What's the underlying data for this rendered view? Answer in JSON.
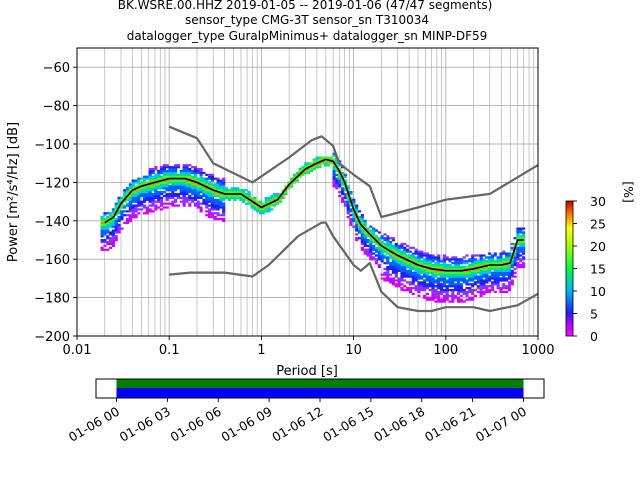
{
  "title_lines": [
    "BK.WSRE.00.HHZ   2019-01-05 -- 2019-01-06  (47/47 segments)",
    "sensor_type CMG-3T sensor_sn T310034",
    "datalogger_type GuralpMinimus+ datalogger_sn MINP-DF59"
  ],
  "axes": {
    "xlabel": "Period [s]",
    "ylabel": "Power [m²/s⁴/Hz] [dB]",
    "xlim": [
      0.01,
      1000
    ],
    "ylim": [
      -200,
      -50
    ],
    "x_scale": "log",
    "grid": true,
    "x_ticks": [
      {
        "value": 0.01,
        "label": "0.01"
      },
      {
        "value": 0.1,
        "label": "0.1"
      },
      {
        "value": 1,
        "label": "1"
      },
      {
        "value": 10,
        "label": "10"
      },
      {
        "value": 100,
        "label": "100"
      },
      {
        "value": 1000,
        "label": "1000"
      }
    ],
    "y_ticks": [
      {
        "value": -60,
        "label": "−60"
      },
      {
        "value": -80,
        "label": "−80"
      },
      {
        "value": -100,
        "label": "−100"
      },
      {
        "value": -120,
        "label": "−120"
      },
      {
        "value": -140,
        "label": "−140"
      },
      {
        "value": -160,
        "label": "−160"
      },
      {
        "value": -180,
        "label": "−180"
      },
      {
        "value": -200,
        "label": "−200"
      }
    ]
  },
  "colorbar": {
    "label": "[%]",
    "range": [
      0,
      30
    ],
    "ticks": [
      {
        "value": 0,
        "label": "0"
      },
      {
        "value": 5,
        "label": "5"
      },
      {
        "value": 10,
        "label": "10"
      },
      {
        "value": 15,
        "label": "15"
      },
      {
        "value": 20,
        "label": "20"
      },
      {
        "value": 25,
        "label": "25"
      },
      {
        "value": 30,
        "label": "30"
      }
    ]
  },
  "timeline": {
    "tick_labels": [
      "01-06 00",
      "01-06 03",
      "01-06 06",
      "01-06 09",
      "01-06 12",
      "01-06 15",
      "01-06 18",
      "01-06 21",
      "01-07 00"
    ],
    "covered": [
      "01-06 00",
      "01-07 00"
    ],
    "bar_colors": {
      "top": "#008000",
      "bottom": "#0000ff"
    }
  },
  "chart_data": {
    "type": "heatmap",
    "title": "BK.WSRE.00.HHZ   2019-01-05 -- 2019-01-06  (47/47 segments)",
    "xlabel": "Period [s]",
    "ylabel": "Power [m²/s⁴/Hz] [dB]",
    "xlim": [
      0.01,
      1000
    ],
    "ylim": [
      -200,
      -50
    ],
    "x_scale": "log",
    "colorbar_range": [
      0,
      30
    ],
    "colorbar_label": "[%]",
    "series": [
      {
        "role": "mode",
        "color": "#000000",
        "x": [
          0.02,
          0.025,
          0.03,
          0.04,
          0.05,
          0.07,
          0.1,
          0.15,
          0.2,
          0.3,
          0.4,
          0.6,
          0.8,
          1.0,
          1.5,
          2,
          3,
          4,
          5,
          6,
          7,
          8,
          10,
          12,
          15,
          20,
          30,
          50,
          70,
          100,
          150,
          200,
          300,
          400,
          500,
          600,
          700
        ],
        "y": [
          -141,
          -138,
          -131,
          -124,
          -122,
          -120,
          -118,
          -118,
          -120,
          -124,
          -126,
          -126,
          -130,
          -133,
          -129,
          -121,
          -113,
          -110,
          -108,
          -109,
          -114,
          -120,
          -134,
          -142,
          -147,
          -153,
          -158,
          -163,
          -165,
          -166,
          -166,
          -165,
          -163,
          -163,
          -162,
          -150,
          -150
        ]
      },
      {
        "role": "upper-noise-model",
        "color": "#666666",
        "x": [
          0.1,
          0.2,
          0.3,
          0.8,
          2,
          3.5,
          4.5,
          6,
          7,
          10,
          15,
          20,
          50,
          100,
          300,
          1000
        ],
        "y": [
          -91,
          -97,
          -110,
          -120,
          -107,
          -98,
          -96,
          -101,
          -110,
          -116,
          -122,
          -138,
          -133,
          -129,
          -126,
          -111
        ]
      },
      {
        "role": "lower-noise-model",
        "color": "#666666",
        "x": [
          0.1,
          0.17,
          0.4,
          0.8,
          1.2,
          2.5,
          4.5,
          5,
          6,
          10,
          12,
          15,
          20,
          30,
          50,
          70,
          100,
          200,
          300,
          600,
          1000
        ],
        "y": [
          -168,
          -167,
          -167,
          -169,
          -163,
          -148,
          -141,
          -141,
          -148,
          -163,
          -166,
          -162,
          -177,
          -185,
          -187,
          -187,
          -185,
          -185,
          -187,
          -184,
          -178
        ]
      }
    ]
  }
}
